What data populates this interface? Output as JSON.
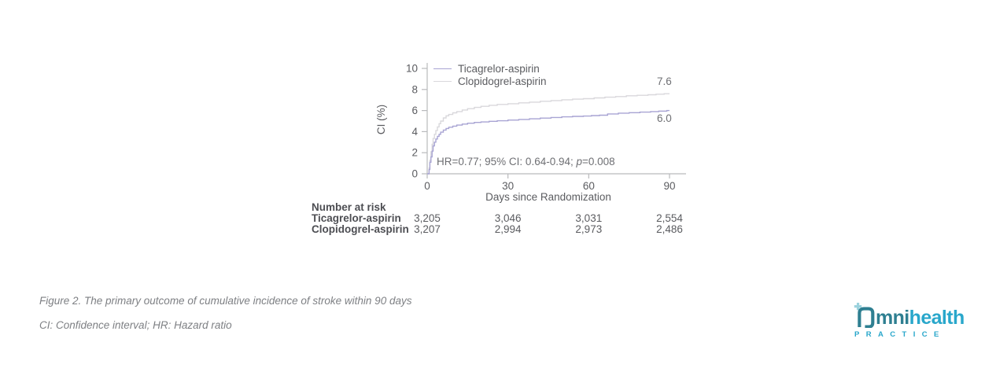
{
  "figure": {
    "caption": "Figure 2. The primary outcome of cumulative incidence of stroke within 90 days",
    "footnote": "CI: Confidence interval; HR: Hazard ratio"
  },
  "chart_data": {
    "type": "line",
    "subtype": "kaplan-meier-cumulative-incidence-step",
    "title": "",
    "xlabel": "Days since Randomization",
    "ylabel": "CI (%)",
    "xlim": [
      0,
      90
    ],
    "ylim": [
      0,
      10
    ],
    "xticks": [
      0,
      30,
      60,
      90
    ],
    "yticks": [
      0,
      2,
      4,
      6,
      8,
      10
    ],
    "grid": false,
    "legend_position": "top-left-inside",
    "axis_color": "#b9babc",
    "text_color": "#5b5c60",
    "annotation": {
      "full_text": "HR=0.77; 95% CI: 0.64-0.94; p=0.008",
      "prefix": "HR=0.77; 95% CI: 0.64-0.94; ",
      "p_symbol": "p",
      "suffix": "=0.008"
    },
    "series": [
      {
        "name": "Ticagrelor-aspirin",
        "color": "#a8a4d3",
        "end_label": "6.0",
        "end_value": 6.0,
        "points": [
          [
            0,
            0
          ],
          [
            0.7,
            0.4
          ],
          [
            1,
            1.1
          ],
          [
            1.4,
            1.6
          ],
          [
            1.8,
            2.15
          ],
          [
            2.2,
            2.65
          ],
          [
            2.7,
            3.0
          ],
          [
            3.2,
            3.3
          ],
          [
            3.8,
            3.55
          ],
          [
            4.4,
            3.75
          ],
          [
            5,
            3.95
          ],
          [
            6,
            4.15
          ],
          [
            7,
            4.3
          ],
          [
            8,
            4.42
          ],
          [
            9.5,
            4.52
          ],
          [
            11,
            4.62
          ],
          [
            13,
            4.72
          ],
          [
            15,
            4.8
          ],
          [
            17.5,
            4.87
          ],
          [
            20,
            4.92
          ],
          [
            23,
            4.98
          ],
          [
            26,
            5.03
          ],
          [
            30,
            5.1
          ],
          [
            34,
            5.16
          ],
          [
            38,
            5.22
          ],
          [
            42,
            5.28
          ],
          [
            46,
            5.34
          ],
          [
            50,
            5.4
          ],
          [
            54,
            5.45
          ],
          [
            58,
            5.48
          ],
          [
            61,
            5.52
          ],
          [
            64,
            5.56
          ],
          [
            67,
            5.68
          ],
          [
            71,
            5.75
          ],
          [
            75,
            5.8
          ],
          [
            79,
            5.85
          ],
          [
            83,
            5.9
          ],
          [
            86,
            5.95
          ],
          [
            89,
            6.0
          ],
          [
            90,
            6.0
          ]
        ]
      },
      {
        "name": "Clopidogrel-aspirin",
        "color": "#d9d8dc",
        "end_label": "7.6",
        "end_value": 7.6,
        "points": [
          [
            0,
            0
          ],
          [
            0.7,
            0.55
          ],
          [
            1,
            1.3
          ],
          [
            1.4,
            2.1
          ],
          [
            1.8,
            2.8
          ],
          [
            2.2,
            3.35
          ],
          [
            2.7,
            3.75
          ],
          [
            3.2,
            4.1
          ],
          [
            3.8,
            4.45
          ],
          [
            4.4,
            4.75
          ],
          [
            5,
            5.0
          ],
          [
            6,
            5.3
          ],
          [
            7,
            5.5
          ],
          [
            8,
            5.63
          ],
          [
            9.5,
            5.78
          ],
          [
            11,
            5.9
          ],
          [
            13,
            6.05
          ],
          [
            15,
            6.18
          ],
          [
            17.5,
            6.3
          ],
          [
            20,
            6.4
          ],
          [
            23,
            6.5
          ],
          [
            26,
            6.58
          ],
          [
            30,
            6.65
          ],
          [
            34,
            6.73
          ],
          [
            38,
            6.8
          ],
          [
            42,
            6.88
          ],
          [
            46,
            6.95
          ],
          [
            50,
            7.02
          ],
          [
            54,
            7.08
          ],
          [
            58,
            7.13
          ],
          [
            62,
            7.2
          ],
          [
            66,
            7.27
          ],
          [
            70,
            7.33
          ],
          [
            74,
            7.4
          ],
          [
            78,
            7.45
          ],
          [
            82,
            7.5
          ],
          [
            85,
            7.55
          ],
          [
            88,
            7.6
          ],
          [
            90,
            7.6
          ]
        ]
      }
    ],
    "number_at_risk": {
      "title": "Number at risk",
      "rows": [
        {
          "label": "Ticagrelor-aspirin",
          "values": [
            "3,205",
            "3,046",
            "3,031",
            "2,554"
          ]
        },
        {
          "label": "Clopidogrel-aspirin",
          "values": [
            "3,207",
            "2,994",
            "2,973",
            "2,486"
          ]
        }
      ]
    }
  },
  "logo": {
    "word_rest": "mni",
    "word_bold": "health",
    "tagline": "PRACTICE",
    "colors": {
      "dark_teal": "#2e7f91",
      "cyan": "#29a7cb",
      "light_teal": "#9bd2dd"
    }
  }
}
